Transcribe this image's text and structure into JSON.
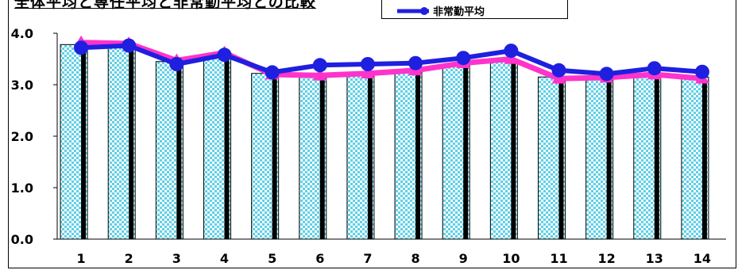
{
  "chart_data": {
    "type": "bar",
    "title": "全体平均と専任平均と非常勤平均との比較",
    "categories": [
      "1",
      "2",
      "3",
      "4",
      "5",
      "6",
      "7",
      "8",
      "9",
      "10",
      "11",
      "12",
      "13",
      "14"
    ],
    "ylim": [
      0,
      4
    ],
    "yticks": [
      "0.0",
      "1.0",
      "2.0",
      "3.0",
      "4.0"
    ],
    "grid": false,
    "legend_position": "top-right",
    "bars": [
      {
        "name": "",
        "values": [
          3.78,
          3.78,
          3.45,
          3.58,
          3.22,
          3.2,
          3.2,
          3.25,
          3.4,
          3.45,
          3.15,
          3.12,
          3.18,
          3.15
        ],
        "pattern": "checker",
        "colors": [
          "#5fd0e6",
          "#ffffff"
        ]
      },
      {
        "name": "",
        "values": [
          3.72,
          3.75,
          3.4,
          3.55,
          3.2,
          3.22,
          3.25,
          3.25,
          3.45,
          3.5,
          3.1,
          3.1,
          3.15,
          3.1
        ],
        "color": "#000000"
      }
    ],
    "series": [
      {
        "name": "",
        "color": "#ff33cc",
        "marker": "triangle",
        "values": [
          3.82,
          3.8,
          3.47,
          3.62,
          3.2,
          3.18,
          3.22,
          3.28,
          3.42,
          3.5,
          3.12,
          3.14,
          3.2,
          3.12
        ]
      },
      {
        "name": "非常勤平均",
        "color": "#1f1fe0",
        "marker": "circle",
        "values": [
          3.72,
          3.76,
          3.4,
          3.58,
          3.24,
          3.38,
          3.4,
          3.42,
          3.52,
          3.66,
          3.28,
          3.21,
          3.32,
          3.25
        ]
      }
    ]
  }
}
